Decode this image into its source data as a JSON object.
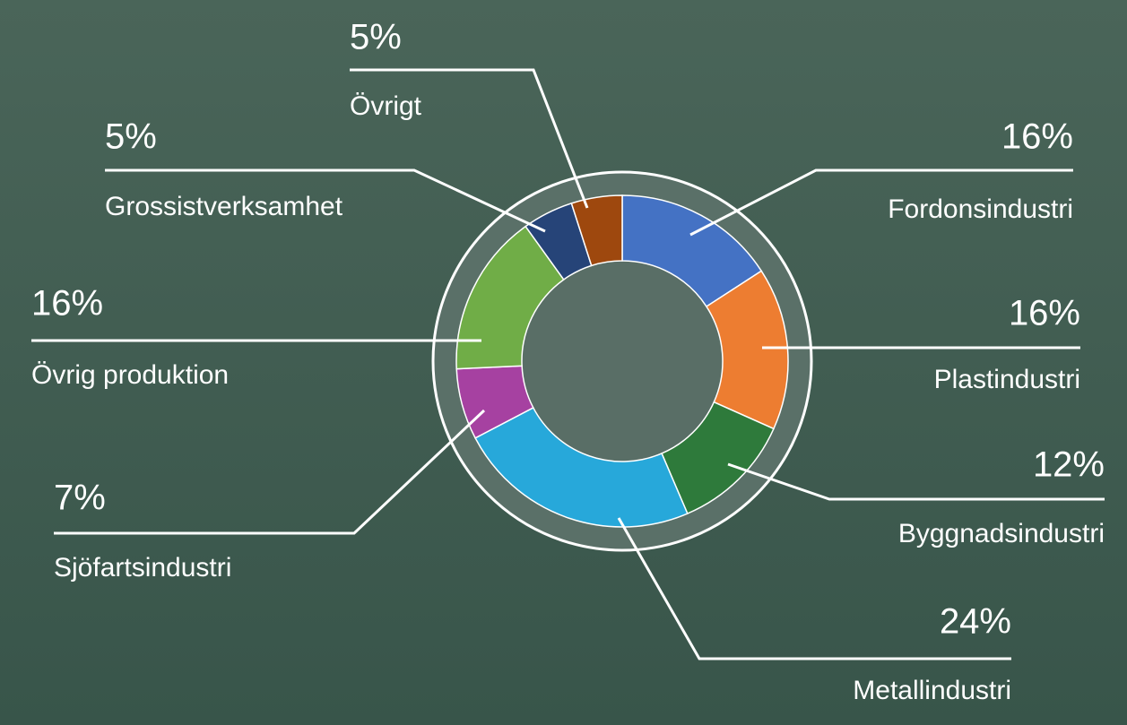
{
  "chart_data": {
    "type": "donut",
    "categories": [
      "Fordonsindustri",
      "Plastindustri",
      "Byggnadsindustri",
      "Metallindustri",
      "Sjöfartsindustri",
      "Övrig produktion",
      "Grossistverksamhet",
      "Övrigt"
    ],
    "values": [
      16,
      16,
      12,
      24,
      7,
      16,
      5,
      5
    ],
    "value_labels": [
      "16%",
      "16%",
      "12%",
      "24%",
      "7%",
      "16%",
      "5%",
      "5%"
    ],
    "colors": [
      "#4472c4",
      "#ed7d31",
      "#2e7a3b",
      "#27a8da",
      "#a641a1",
      "#70ad47",
      "#264478",
      "#9e480e"
    ]
  }
}
